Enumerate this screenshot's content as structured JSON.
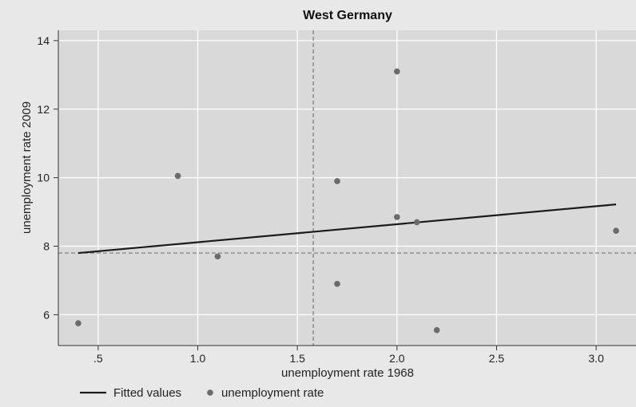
{
  "chart_data": {
    "type": "scatter",
    "title": "West Germany",
    "xlabel": "unemployment rate 1968",
    "ylabel": "unemployment rate 2009",
    "xlim": [
      0.3,
      3.2
    ],
    "ylim": [
      5.1,
      14.3
    ],
    "xticks": [
      {
        "value": 0.5,
        "label": ".5"
      },
      {
        "value": 1.0,
        "label": "1.0"
      },
      {
        "value": 1.5,
        "label": "1.5"
      },
      {
        "value": 2.0,
        "label": "2.0"
      },
      {
        "value": 2.5,
        "label": "2.5"
      },
      {
        "value": 3.0,
        "label": "3.0"
      }
    ],
    "yticks": [
      {
        "value": 6,
        "label": "6"
      },
      {
        "value": 8,
        "label": "8"
      },
      {
        "value": 10,
        "label": "10"
      },
      {
        "value": 12,
        "label": "12"
      },
      {
        "value": 14,
        "label": "14"
      }
    ],
    "grid": true,
    "series": [
      {
        "name": "unemployment rate",
        "kind": "scatter",
        "color": "#6b6b6b",
        "points": [
          {
            "x": 0.4,
            "y": 5.75
          },
          {
            "x": 0.9,
            "y": 10.05
          },
          {
            "x": 1.1,
            "y": 7.7
          },
          {
            "x": 1.7,
            "y": 9.9
          },
          {
            "x": 1.7,
            "y": 6.9
          },
          {
            "x": 2.0,
            "y": 13.1
          },
          {
            "x": 2.0,
            "y": 8.85
          },
          {
            "x": 2.1,
            "y": 8.7
          },
          {
            "x": 2.2,
            "y": 5.55
          },
          {
            "x": 3.1,
            "y": 8.45
          }
        ]
      },
      {
        "name": "Fitted values",
        "kind": "line",
        "color": "#1a1a1a",
        "points": [
          {
            "x": 0.4,
            "y": 7.8
          },
          {
            "x": 3.1,
            "y": 9.22
          }
        ]
      }
    ],
    "reference_lines": [
      {
        "orientation": "vertical",
        "value": 1.58
      },
      {
        "orientation": "horizontal",
        "value": 7.8
      }
    ],
    "legend_position": "bottom-left"
  }
}
